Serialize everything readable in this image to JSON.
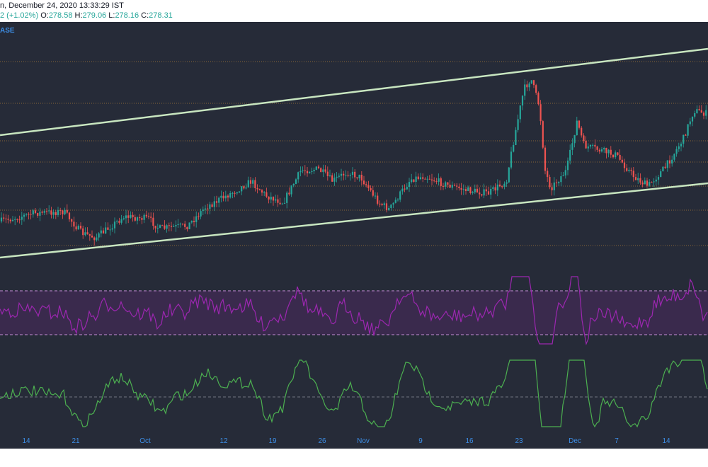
{
  "header": {
    "line1": "n, December 24, 2020 13:33:29 IST",
    "change_prefix": "2 (+1.02%)",
    "o_label": "O:",
    "o_value": "278.58",
    "h_label": "H:",
    "h_value": "279.06",
    "l_label": "L:",
    "l_value": "278.16",
    "c_label": "C:",
    "c_value": "278.31"
  },
  "symbol_label": "ASE",
  "colors": {
    "background": "#262b38",
    "up_candle": "#26a69a",
    "down_candle": "#ef5350",
    "channel_line": "#c8e6c0",
    "level_line": "#c98a3a",
    "rsi_line": "#9c27b0",
    "rsi_band": "#4a2a5e",
    "osc_line": "#4caf50",
    "axis_text": "#3d8ee6"
  },
  "chart_data": {
    "type": "candlestick",
    "x_tick_labels": [
      "14",
      "21",
      "Oct",
      "12",
      "19",
      "26",
      "Nov",
      "9",
      "16",
      "23",
      "Dec",
      "7",
      "14"
    ],
    "panels": [
      "price",
      "rsi",
      "oscillator"
    ],
    "grid": false,
    "legend": "none"
  }
}
